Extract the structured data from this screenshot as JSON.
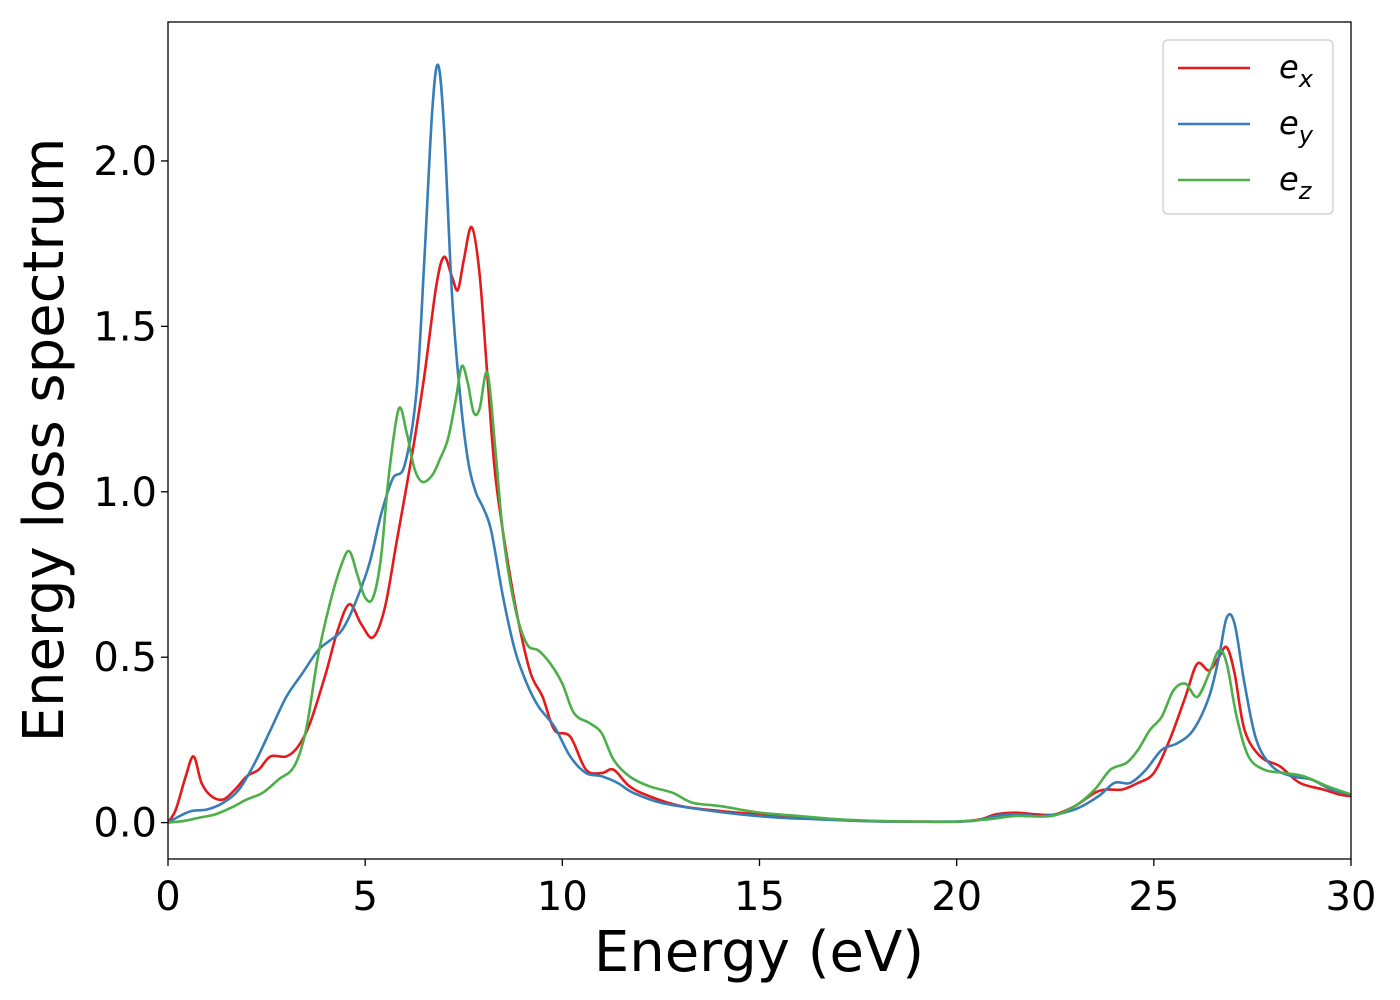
{
  "chart_data": {
    "type": "line",
    "title": "",
    "xlabel": "Energy (eV)",
    "ylabel": "Energy loss spectrum",
    "xlim": [
      0,
      30
    ],
    "ylim": [
      -0.11,
      2.42
    ],
    "xticks": [
      0,
      5,
      10,
      15,
      20,
      25,
      30
    ],
    "xtick_labels": [
      "0",
      "5",
      "10",
      "15",
      "20",
      "25",
      "30"
    ],
    "yticks": [
      0.0,
      0.5,
      1.0,
      1.5,
      2.0
    ],
    "ytick_labels": [
      "0.0",
      "0.5",
      "1.0",
      "1.5",
      "2.0"
    ],
    "grid": false,
    "legend_position": "top-right",
    "series": [
      {
        "name": "e_x",
        "label_base": "e",
        "label_sub": "x",
        "color": "#e41a1c",
        "points": [
          [
            0,
            0
          ],
          [
            0.2,
            0.04
          ],
          [
            0.45,
            0.14
          ],
          [
            0.65,
            0.2
          ],
          [
            0.85,
            0.12
          ],
          [
            1.1,
            0.08
          ],
          [
            1.4,
            0.07
          ],
          [
            1.7,
            0.1
          ],
          [
            2.0,
            0.14
          ],
          [
            2.3,
            0.16
          ],
          [
            2.6,
            0.2
          ],
          [
            3.0,
            0.2
          ],
          [
            3.3,
            0.23
          ],
          [
            3.6,
            0.3
          ],
          [
            4.0,
            0.45
          ],
          [
            4.3,
            0.58
          ],
          [
            4.6,
            0.66
          ],
          [
            4.9,
            0.6
          ],
          [
            5.2,
            0.56
          ],
          [
            5.5,
            0.65
          ],
          [
            5.8,
            0.85
          ],
          [
            6.2,
            1.12
          ],
          [
            6.5,
            1.35
          ],
          [
            6.8,
            1.62
          ],
          [
            7.0,
            1.71
          ],
          [
            7.2,
            1.65
          ],
          [
            7.35,
            1.61
          ],
          [
            7.5,
            1.7
          ],
          [
            7.7,
            1.8
          ],
          [
            7.9,
            1.66
          ],
          [
            8.1,
            1.35
          ],
          [
            8.3,
            1.05
          ],
          [
            8.6,
            0.8
          ],
          [
            8.9,
            0.6
          ],
          [
            9.2,
            0.45
          ],
          [
            9.5,
            0.38
          ],
          [
            9.8,
            0.28
          ],
          [
            10.2,
            0.26
          ],
          [
            10.6,
            0.16
          ],
          [
            11.0,
            0.15
          ],
          [
            11.3,
            0.16
          ],
          [
            11.7,
            0.11
          ],
          [
            12.2,
            0.08
          ],
          [
            13.0,
            0.05
          ],
          [
            14.0,
            0.035
          ],
          [
            15.0,
            0.025
          ],
          [
            16.0,
            0.015
          ],
          [
            17.0,
            0.008
          ],
          [
            18.0,
            0.004
          ],
          [
            19.0,
            0.003
          ],
          [
            20.0,
            0.003
          ],
          [
            20.6,
            0.01
          ],
          [
            21.0,
            0.025
          ],
          [
            21.5,
            0.03
          ],
          [
            22.0,
            0.025
          ],
          [
            22.5,
            0.025
          ],
          [
            23.0,
            0.05
          ],
          [
            23.5,
            0.09
          ],
          [
            23.8,
            0.1
          ],
          [
            24.2,
            0.1
          ],
          [
            24.6,
            0.12
          ],
          [
            25.0,
            0.15
          ],
          [
            25.4,
            0.25
          ],
          [
            25.8,
            0.38
          ],
          [
            26.1,
            0.48
          ],
          [
            26.4,
            0.46
          ],
          [
            26.65,
            0.5
          ],
          [
            26.85,
            0.53
          ],
          [
            27.05,
            0.45
          ],
          [
            27.3,
            0.28
          ],
          [
            27.7,
            0.2
          ],
          [
            28.2,
            0.17
          ],
          [
            28.7,
            0.12
          ],
          [
            29.3,
            0.1
          ],
          [
            29.7,
            0.085
          ],
          [
            30.0,
            0.08
          ]
        ]
      },
      {
        "name": "e_y",
        "label_base": "e",
        "label_sub": "y",
        "color": "#377eb8",
        "points": [
          [
            0,
            0
          ],
          [
            0.3,
            0.02
          ],
          [
            0.6,
            0.035
          ],
          [
            1.0,
            0.04
          ],
          [
            1.4,
            0.06
          ],
          [
            1.8,
            0.1
          ],
          [
            2.2,
            0.18
          ],
          [
            2.6,
            0.28
          ],
          [
            3.0,
            0.38
          ],
          [
            3.4,
            0.45
          ],
          [
            3.8,
            0.52
          ],
          [
            4.1,
            0.55
          ],
          [
            4.4,
            0.58
          ],
          [
            4.7,
            0.65
          ],
          [
            5.1,
            0.78
          ],
          [
            5.4,
            0.93
          ],
          [
            5.7,
            1.04
          ],
          [
            6.0,
            1.08
          ],
          [
            6.3,
            1.3
          ],
          [
            6.5,
            1.7
          ],
          [
            6.7,
            2.15
          ],
          [
            6.85,
            2.29
          ],
          [
            7.0,
            2.1
          ],
          [
            7.2,
            1.6
          ],
          [
            7.4,
            1.3
          ],
          [
            7.6,
            1.1
          ],
          [
            7.8,
            1.0
          ],
          [
            8.0,
            0.95
          ],
          [
            8.2,
            0.88
          ],
          [
            8.5,
            0.68
          ],
          [
            8.8,
            0.52
          ],
          [
            9.1,
            0.42
          ],
          [
            9.4,
            0.35
          ],
          [
            9.8,
            0.29
          ],
          [
            10.2,
            0.2
          ],
          [
            10.6,
            0.15
          ],
          [
            11.0,
            0.14
          ],
          [
            11.4,
            0.12
          ],
          [
            11.8,
            0.09
          ],
          [
            12.5,
            0.06
          ],
          [
            13.5,
            0.04
          ],
          [
            14.5,
            0.025
          ],
          [
            15.5,
            0.015
          ],
          [
            16.5,
            0.01
          ],
          [
            17.5,
            0.005
          ],
          [
            18.5,
            0.003
          ],
          [
            19.5,
            0.003
          ],
          [
            20.4,
            0.005
          ],
          [
            21.0,
            0.02
          ],
          [
            21.5,
            0.025
          ],
          [
            22.2,
            0.02
          ],
          [
            23.0,
            0.04
          ],
          [
            23.6,
            0.08
          ],
          [
            24.0,
            0.12
          ],
          [
            24.4,
            0.12
          ],
          [
            24.8,
            0.16
          ],
          [
            25.2,
            0.22
          ],
          [
            25.6,
            0.24
          ],
          [
            26.0,
            0.28
          ],
          [
            26.4,
            0.38
          ],
          [
            26.65,
            0.5
          ],
          [
            26.85,
            0.62
          ],
          [
            27.05,
            0.6
          ],
          [
            27.3,
            0.42
          ],
          [
            27.6,
            0.25
          ],
          [
            28.0,
            0.17
          ],
          [
            28.5,
            0.14
          ],
          [
            29.0,
            0.13
          ],
          [
            29.5,
            0.1
          ],
          [
            30.0,
            0.085
          ]
        ]
      },
      {
        "name": "e_z",
        "label_base": "e",
        "label_sub": "z",
        "color": "#4daf4a",
        "points": [
          [
            0,
            0
          ],
          [
            0.4,
            0.005
          ],
          [
            0.8,
            0.015
          ],
          [
            1.2,
            0.025
          ],
          [
            1.6,
            0.045
          ],
          [
            2.0,
            0.07
          ],
          [
            2.4,
            0.09
          ],
          [
            2.8,
            0.13
          ],
          [
            3.2,
            0.17
          ],
          [
            3.5,
            0.28
          ],
          [
            3.8,
            0.5
          ],
          [
            4.1,
            0.66
          ],
          [
            4.4,
            0.78
          ],
          [
            4.6,
            0.82
          ],
          [
            4.8,
            0.75
          ],
          [
            5.0,
            0.68
          ],
          [
            5.2,
            0.68
          ],
          [
            5.4,
            0.8
          ],
          [
            5.6,
            1.05
          ],
          [
            5.85,
            1.25
          ],
          [
            6.05,
            1.18
          ],
          [
            6.25,
            1.07
          ],
          [
            6.45,
            1.03
          ],
          [
            6.7,
            1.05
          ],
          [
            6.9,
            1.1
          ],
          [
            7.1,
            1.16
          ],
          [
            7.3,
            1.28
          ],
          [
            7.45,
            1.38
          ],
          [
            7.6,
            1.33
          ],
          [
            7.75,
            1.24
          ],
          [
            7.9,
            1.25
          ],
          [
            8.1,
            1.36
          ],
          [
            8.3,
            1.13
          ],
          [
            8.5,
            0.87
          ],
          [
            8.8,
            0.65
          ],
          [
            9.1,
            0.54
          ],
          [
            9.4,
            0.52
          ],
          [
            9.7,
            0.48
          ],
          [
            10.0,
            0.42
          ],
          [
            10.3,
            0.33
          ],
          [
            10.7,
            0.3
          ],
          [
            11.0,
            0.27
          ],
          [
            11.3,
            0.19
          ],
          [
            11.7,
            0.14
          ],
          [
            12.2,
            0.11
          ],
          [
            12.8,
            0.09
          ],
          [
            13.3,
            0.06
          ],
          [
            14.0,
            0.05
          ],
          [
            15.0,
            0.03
          ],
          [
            16.0,
            0.02
          ],
          [
            17.0,
            0.01
          ],
          [
            18.0,
            0.005
          ],
          [
            19.0,
            0.003
          ],
          [
            20.0,
            0.003
          ],
          [
            20.8,
            0.01
          ],
          [
            21.5,
            0.02
          ],
          [
            22.4,
            0.02
          ],
          [
            23.0,
            0.05
          ],
          [
            23.5,
            0.1
          ],
          [
            23.9,
            0.16
          ],
          [
            24.3,
            0.18
          ],
          [
            24.6,
            0.22
          ],
          [
            24.9,
            0.28
          ],
          [
            25.2,
            0.32
          ],
          [
            25.5,
            0.4
          ],
          [
            25.8,
            0.42
          ],
          [
            26.1,
            0.38
          ],
          [
            26.4,
            0.45
          ],
          [
            26.65,
            0.52
          ],
          [
            26.85,
            0.48
          ],
          [
            27.1,
            0.32
          ],
          [
            27.4,
            0.2
          ],
          [
            27.8,
            0.16
          ],
          [
            28.3,
            0.15
          ],
          [
            28.8,
            0.14
          ],
          [
            29.4,
            0.11
          ],
          [
            30.0,
            0.085
          ]
        ]
      }
    ]
  }
}
